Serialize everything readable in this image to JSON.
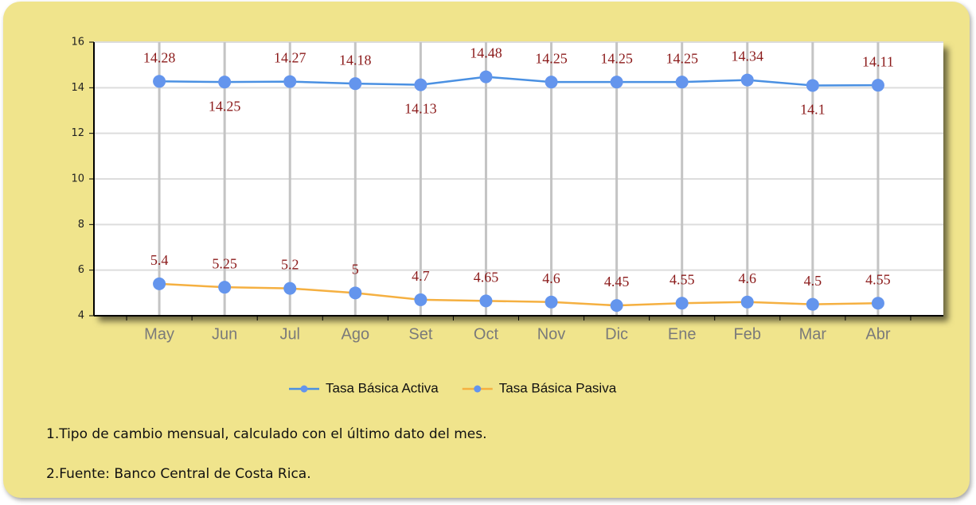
{
  "chart_data": {
    "type": "line",
    "categories": [
      "May",
      "Jun",
      "Jul",
      "Ago",
      "Set",
      "Oct",
      "Nov",
      "Dic",
      "Ene",
      "Feb",
      "Mar",
      "Abr"
    ],
    "series": [
      {
        "name": "Tasa Básica Activa",
        "color": "#4a90e2",
        "marker_color": "#6495ed",
        "values": [
          14.28,
          14.25,
          14.27,
          14.18,
          14.13,
          14.48,
          14.25,
          14.25,
          14.25,
          14.34,
          14.1,
          14.11
        ]
      },
      {
        "name": "Tasa Básica Pasiva",
        "color": "#f5b041",
        "marker_color": "#6495ed",
        "values": [
          5.4,
          5.25,
          5.2,
          5,
          4.7,
          4.65,
          4.6,
          4.45,
          4.55,
          4.6,
          4.5,
          4.55
        ]
      }
    ],
    "ylim": [
      4,
      16
    ],
    "yticks": [
      4,
      6,
      8,
      10,
      12,
      14,
      16
    ],
    "grid": true,
    "legend": "bottom"
  },
  "notes": [
    "1.Tipo de cambio mensual, calculado con el último dato del mes.",
    "2.Fuente: Banco Central de Costa Rica."
  ]
}
